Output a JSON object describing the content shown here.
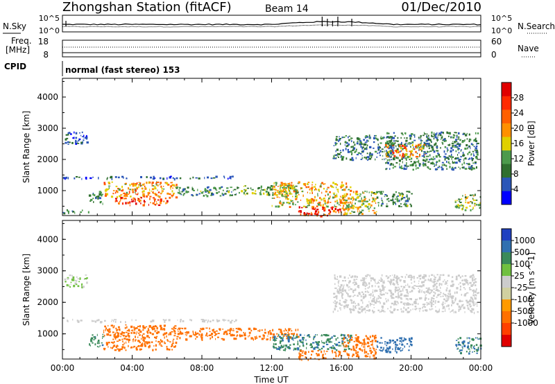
{
  "header": {
    "station": "Zhongshan Station (fitACF)",
    "beam": "Beam 14",
    "date": "01/Dec/2010"
  },
  "noise_panel": {
    "left_label": "N.Sky",
    "right_label": "N.Search",
    "left_ticks": [
      "10^5",
      "10^0"
    ],
    "right_ticks": [
      "10^5",
      "10^0"
    ]
  },
  "freq_panel": {
    "left_label_line1": "Freq.",
    "left_label_line2": "[MHz]",
    "right_label": "Nave",
    "left_ticks": [
      "18",
      "8"
    ],
    "right_ticks": [
      "60",
      "0"
    ]
  },
  "cpid": {
    "label": "CPID",
    "mode": "normal (fast stereo) 153"
  },
  "colors": {
    "power_scale": [
      "#0000ff",
      "#2a56b8",
      "#2f6f2f",
      "#4c9a4c",
      "#e0d000",
      "#ff9000",
      "#ff6000",
      "#ff2a00",
      "#e00000"
    ],
    "velocity_scale": [
      "#2040c0",
      "#3070b0",
      "#3a8a5a",
      "#70c040",
      "#cccccc",
      "#d0d0a0",
      "#ff9a00",
      "#ff7000",
      "#ff4000",
      "#e00000"
    ]
  },
  "chart_data": [
    {
      "type": "heatmap",
      "name": "power",
      "ylabel": "Slant Range [km]",
      "yticks": [
        1000,
        2000,
        3000,
        4000
      ],
      "ylim": [
        200,
        4600
      ],
      "xlim": [
        0,
        24
      ],
      "colorbar": {
        "label": "Power [dB]",
        "ticks": [
          4,
          8,
          12,
          16,
          20,
          24,
          28
        ],
        "range": [
          0,
          32
        ]
      },
      "regions": [
        {
          "t0": 0.1,
          "t1": 1.4,
          "r0": 2500,
          "r1": 2900,
          "v": 6
        },
        {
          "t0": 0.0,
          "t1": 1.5,
          "r0": 300,
          "r1": 400,
          "v": 10
        },
        {
          "t0": 1.5,
          "t1": 2.3,
          "r0": 600,
          "r1": 1000,
          "v": 10
        },
        {
          "t0": 2.3,
          "t1": 6.5,
          "r0": 800,
          "r1": 1300,
          "v": 20
        },
        {
          "t0": 3.0,
          "t1": 6.0,
          "r0": 550,
          "r1": 800,
          "v": 27
        },
        {
          "t0": 6.5,
          "t1": 10.0,
          "r0": 850,
          "r1": 1150,
          "v": 10
        },
        {
          "t0": 10.0,
          "t1": 13.5,
          "r0": 900,
          "r1": 1200,
          "v": 12
        },
        {
          "t0": 0.0,
          "t1": 10.0,
          "r0": 1400,
          "r1": 1480,
          "v": 6
        },
        {
          "t0": 12.0,
          "t1": 16.5,
          "r0": 500,
          "r1": 1300,
          "v": 18
        },
        {
          "t0": 13.5,
          "t1": 16.0,
          "r0": 200,
          "r1": 500,
          "v": 28
        },
        {
          "t0": 16.0,
          "t1": 18.0,
          "r0": 250,
          "r1": 1000,
          "v": 16
        },
        {
          "t0": 15.5,
          "t1": 19.0,
          "r0": 2000,
          "r1": 2800,
          "v": 8
        },
        {
          "t0": 18.5,
          "t1": 23.8,
          "r0": 1700,
          "r1": 2900,
          "v": 9
        },
        {
          "t0": 18.5,
          "t1": 20.8,
          "r0": 2100,
          "r1": 2500,
          "v": 20
        },
        {
          "t0": 18.0,
          "t1": 20.0,
          "r0": 500,
          "r1": 1000,
          "v": 10
        },
        {
          "t0": 22.5,
          "t1": 24.0,
          "r0": 400,
          "r1": 900,
          "v": 14
        }
      ]
    },
    {
      "type": "heatmap",
      "name": "velocity",
      "ylabel": "Slant Range [km]",
      "xlabel": "Time UT",
      "xticks": [
        "00:00",
        "04:00",
        "08:00",
        "12:00",
        "16:00",
        "20:00",
        "00:00"
      ],
      "yticks": [
        1000,
        2000,
        3000,
        4000
      ],
      "ylim": [
        200,
        4600
      ],
      "xlim": [
        0,
        24
      ],
      "colorbar": {
        "label": "Velocity [m s^-1]",
        "ticks": [
          "1000",
          "500",
          "100",
          "25",
          "-25",
          "-100",
          "-500",
          "-1000"
        ]
      },
      "regions": [
        {
          "t0": 0.1,
          "t1": 1.4,
          "r0": 2500,
          "r1": 2900,
          "v": 25
        },
        {
          "t0": 1.5,
          "t1": 2.3,
          "r0": 600,
          "r1": 1000,
          "v": 80
        },
        {
          "t0": 2.3,
          "t1": 6.5,
          "r0": 500,
          "r1": 1300,
          "v": -150
        },
        {
          "t0": 6.5,
          "t1": 13.5,
          "r0": 850,
          "r1": 1200,
          "v": -150
        },
        {
          "t0": 0.0,
          "t1": 10.0,
          "r0": 1400,
          "r1": 1480,
          "v": 10
        },
        {
          "t0": 12.0,
          "t1": 16.5,
          "r0": 500,
          "r1": 1000,
          "v": 90
        },
        {
          "t0": 13.5,
          "t1": 16.0,
          "r0": 200,
          "r1": 500,
          "v": -150
        },
        {
          "t0": 16.0,
          "t1": 18.0,
          "r0": 250,
          "r1": 1000,
          "v": -150
        },
        {
          "t0": 15.5,
          "t1": 23.8,
          "r0": 1700,
          "r1": 2900,
          "v": 0
        },
        {
          "t0": 18.0,
          "t1": 20.0,
          "r0": 450,
          "r1": 900,
          "v": 300
        },
        {
          "t0": 22.5,
          "t1": 24.0,
          "r0": 400,
          "r1": 900,
          "v": 100
        }
      ]
    }
  ]
}
